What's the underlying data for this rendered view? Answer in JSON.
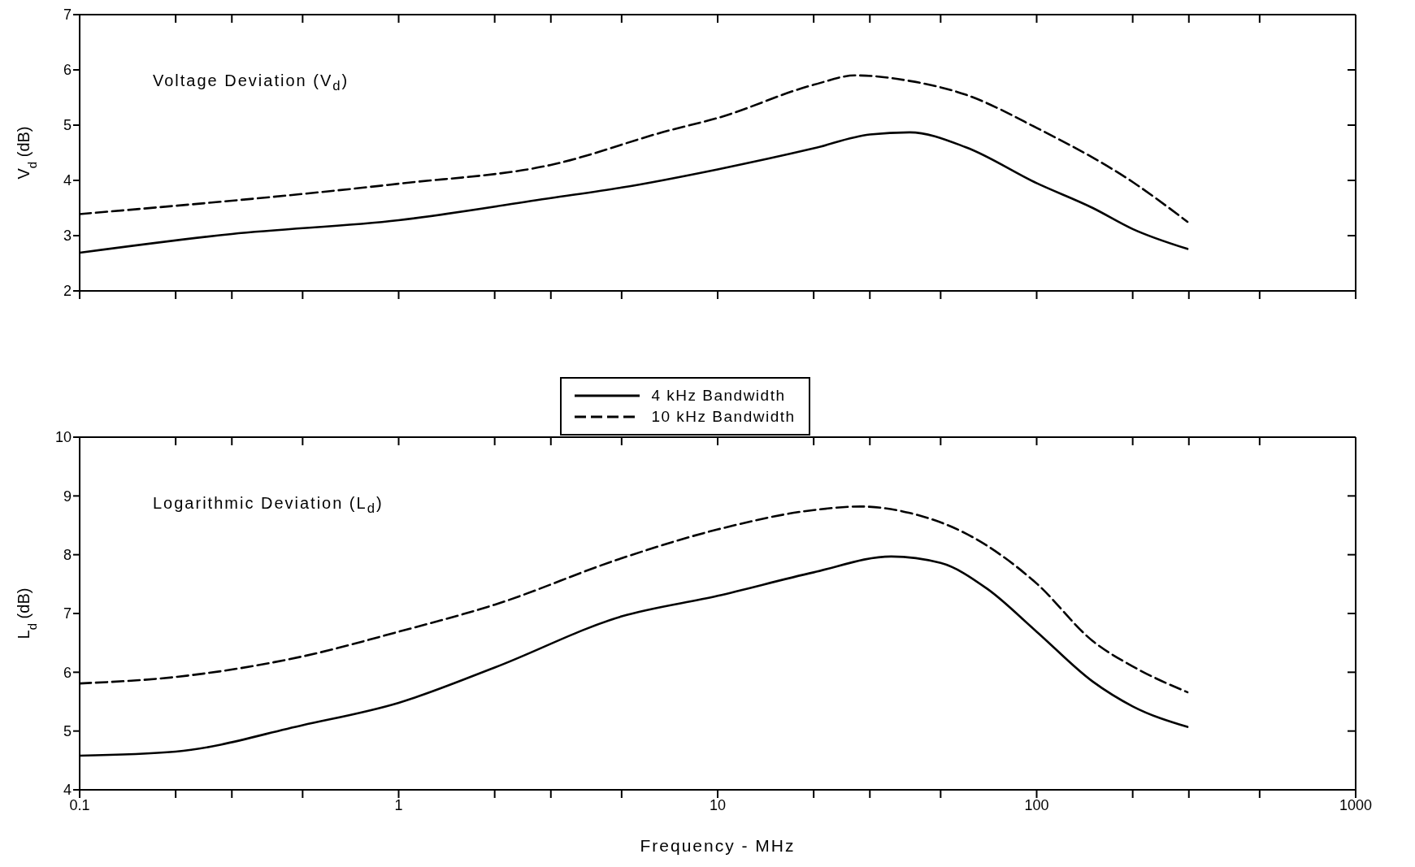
{
  "chart_data": [
    {
      "type": "line",
      "ylabel": "V$_{d}$ (dB)",
      "annotations": [
        "Voltage Deviation (V$_{d}$)"
      ],
      "log": "x",
      "xlim": [
        0.1,
        1000
      ],
      "xticks": [
        0.1,
        {
          "value": 0.2,
          "label": null
        },
        {
          "value": 0.3,
          "label": null
        },
        {
          "value": 0.5,
          "label": null
        },
        1,
        {
          "value": 2,
          "label": null
        },
        {
          "value": 3,
          "label": null
        },
        {
          "value": 5,
          "label": null
        },
        10,
        {
          "value": 20,
          "label": null
        },
        {
          "value": 30,
          "label": null
        },
        {
          "value": 50,
          "label": null
        },
        100,
        {
          "value": 200,
          "label": null
        },
        {
          "value": 300,
          "label": null
        },
        {
          "value": 500,
          "label": null
        },
        1000
      ],
      "ylim": [
        2,
        7
      ],
      "yticks": [
        2,
        3,
        4,
        5,
        6,
        7
      ],
      "tick_labels": "y",
      "legend": "bottom",
      "marker": "none",
      "series": [
        {
          "name": "4 kHz Bandwidth",
          "color": "#000000",
          "line_style": "solid",
          "x": [
            0.1,
            0.3,
            1,
            3,
            5,
            10,
            20,
            30,
            40,
            60,
            100,
            150,
            200,
            297
          ],
          "values": [
            2.69,
            3.03,
            3.28,
            3.68,
            3.87,
            4.2,
            4.58,
            4.83,
            4.87,
            4.6,
            3.95,
            3.5,
            3.12,
            2.76
          ]
        },
        {
          "name": "10 kHz Bandwidth",
          "color": "#000000",
          "line_style": "dashed",
          "x": [
            0.1,
            1,
            3,
            7,
            10,
            20,
            27,
            40,
            60,
            100,
            200,
            297
          ],
          "values": [
            3.39,
            3.94,
            4.28,
            4.9,
            5.13,
            5.73,
            5.9,
            5.8,
            5.55,
            4.95,
            3.97,
            3.25
          ]
        }
      ]
    },
    {
      "type": "line",
      "ylabel": "L$_{d}$ (dB)",
      "xlabel": "Frequency - MHz",
      "annotations": [
        "Logarithmic Deviation (L$_{d}$)"
      ],
      "log": "x",
      "xlim": [
        0.1,
        1000
      ],
      "xticks": [
        0.1,
        {
          "value": 0.2,
          "label": null
        },
        {
          "value": 0.3,
          "label": null
        },
        {
          "value": 0.5,
          "label": null
        },
        1,
        {
          "value": 2,
          "label": null
        },
        {
          "value": 3,
          "label": null
        },
        {
          "value": 5,
          "label": null
        },
        10,
        {
          "value": 20,
          "label": null
        },
        {
          "value": 30,
          "label": null
        },
        {
          "value": 50,
          "label": null
        },
        100,
        {
          "value": 200,
          "label": null
        },
        {
          "value": 300,
          "label": null
        },
        {
          "value": 500,
          "label": null
        },
        1000
      ],
      "ylim": [
        4,
        10
      ],
      "yticks": [
        4,
        5,
        6,
        7,
        8,
        9,
        10
      ],
      "marker": "none",
      "series": [
        {
          "color": "#000000",
          "line_style": "solid",
          "x": [
            0.1,
            0.2,
            0.5,
            1,
            2,
            5,
            10,
            20,
            35,
            50,
            70,
            100,
            150,
            200,
            297
          ],
          "values": [
            4.58,
            4.65,
            5.1,
            5.48,
            6.08,
            6.95,
            7.3,
            7.7,
            7.97,
            7.86,
            7.42,
            6.69,
            5.84,
            5.42,
            5.07
          ]
        },
        {
          "color": "#000000",
          "line_style": "dashed",
          "x": [
            0.1,
            0.2,
            0.5,
            1,
            2,
            5,
            10,
            20,
            28,
            40,
            60,
            100,
            150,
            200,
            297
          ],
          "values": [
            5.81,
            5.92,
            6.27,
            6.69,
            7.15,
            7.94,
            8.43,
            8.76,
            8.82,
            8.71,
            8.36,
            7.51,
            6.53,
            6.1,
            5.66
          ]
        }
      ]
    }
  ]
}
